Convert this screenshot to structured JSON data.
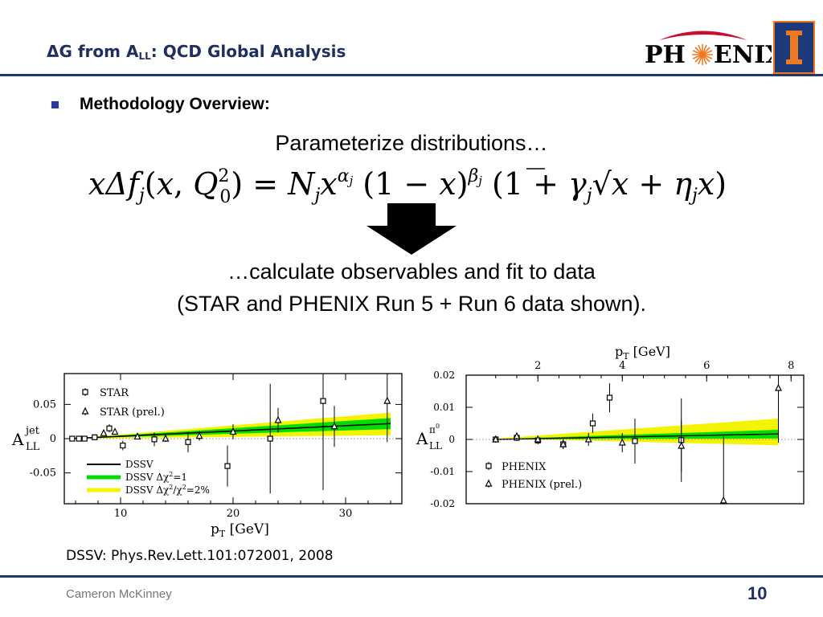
{
  "header": {
    "title_prefix": "ΔG from A",
    "title_sub": "LL",
    "title_suffix": ": QCD Global Analysis",
    "logo_text_left": "PH",
    "logo_text_right": "ENIX",
    "shield_letter": "I",
    "colors": {
      "title": "#1f2f5f",
      "rule": "#1f3a6a",
      "logo_orange": "#f07820",
      "logo_red": "#c8102e"
    }
  },
  "bullet": {
    "marker_color": "#2a3a9a",
    "text": "Methodology Overview:"
  },
  "body": {
    "line1": "Parameterize distributions…",
    "equation": "xΔf_j(x,Q_0^2) = N_j x^{α_j} (1−x)^{β_j} (1+γ_j√x + η_j x)",
    "line2": "…calculate observables and fit to data",
    "line3": "(STAR and PHENIX Run 5 + Run 6 data shown)."
  },
  "reference": "DSSV: Phys.Rev.Lett.101:072001, 2008",
  "footer": {
    "presenter": "Cameron McKinney",
    "page": "10"
  },
  "chart_data": [
    {
      "type": "scatter",
      "name": "star",
      "ylabel_main": "A",
      "ylabel_sup": "jet",
      "ylabel_sub": "LL",
      "xlabel": "p",
      "xlabel_sub": "T",
      "xlabel_unit": " [GeV]",
      "xlim": [
        5,
        35
      ],
      "ylim": [
        -0.095,
        0.095
      ],
      "xticks": [
        10,
        20,
        30
      ],
      "yticks": [
        0.05,
        0,
        -0.05
      ],
      "ytick_labels": [
        "0.05",
        "0",
        "-0.05"
      ],
      "series": [
        {
          "name": "STAR",
          "marker": "square",
          "points": [
            [
              5.7,
              0.0
            ],
            [
              6.3,
              0.0
            ],
            [
              6.8,
              0.0
            ],
            [
              7.7,
              0.002
            ],
            [
              9.0,
              0.015
            ],
            [
              10.2,
              -0.01
            ],
            [
              13.0,
              -0.001
            ],
            [
              16.0,
              -0.005
            ],
            [
              19.5,
              -0.04
            ],
            [
              23.3,
              0.0
            ],
            [
              28.0,
              0.055
            ]
          ],
          "err": [
            0.003,
            0.003,
            0.003,
            0.004,
            0.006,
            0.007,
            0.01,
            0.015,
            0.03,
            0.08,
            0.13
          ]
        },
        {
          "name": "STAR (prel.)",
          "marker": "triangle",
          "points": [
            [
              8.5,
              0.008
            ],
            [
              9.5,
              0.01
            ],
            [
              11.5,
              0.003
            ],
            [
              14.0,
              0.0
            ],
            [
              17.0,
              0.004
            ],
            [
              20.0,
              0.01
            ],
            [
              24.0,
              0.027
            ],
            [
              29.0,
              0.018
            ],
            [
              33.7,
              0.055
            ]
          ],
          "err": [
            0.003,
            0.003,
            0.004,
            0.005,
            0.007,
            0.011,
            0.018,
            0.03,
            0.06
          ]
        }
      ],
      "legend": [
        {
          "label": "DSSV",
          "color": "#000000",
          "width": 2
        },
        {
          "label": "DSSV Δχ",
          "sup": "2",
          "suffix": "=1",
          "color": "#00dd00",
          "width": 5
        },
        {
          "label": "DSSV Δχ",
          "sup": "2",
          "suffix": "/χ",
          "sup2": "2",
          "suffix2": "=2%",
          "color": "#f4f400",
          "width": 5
        }
      ]
    },
    {
      "type": "scatter",
      "name": "phenix",
      "ylabel_main": "A",
      "ylabel_sup": "π",
      "ylabel_sup2": "0",
      "ylabel_sub": "LL",
      "xlabel_top": "p",
      "xlabel_top_sub": "T",
      "xlabel_top_unit": " [GeV]",
      "xlim": [
        0.3,
        8.3
      ],
      "ylim": [
        -0.02,
        0.02
      ],
      "xticks": [
        2,
        4,
        6,
        8
      ],
      "yticks": [
        0.02,
        0.01,
        0,
        -0.01,
        -0.02
      ],
      "ytick_labels": [
        "0.02",
        "0.01",
        "0",
        "-0.01",
        "-0.02"
      ],
      "series": [
        {
          "name": "PHENIX",
          "marker": "square",
          "points": [
            [
              1.0,
              0.0
            ],
            [
              1.5,
              0.0005
            ],
            [
              2.0,
              -0.0003
            ],
            [
              2.6,
              -0.0015
            ],
            [
              3.3,
              0.005
            ],
            [
              3.7,
              0.013
            ],
            [
              4.3,
              -0.0005
            ],
            [
              5.4,
              -0.0002
            ]
          ],
          "err": [
            0.001,
            0.001,
            0.0012,
            0.0015,
            0.003,
            0.0045,
            0.007,
            0.013
          ]
        },
        {
          "name": "PHENIX (prel.)",
          "marker": "triangle",
          "points": [
            [
              1.0,
              0.0
            ],
            [
              1.5,
              0.001
            ],
            [
              2.0,
              0.0
            ],
            [
              2.6,
              -0.0015
            ],
            [
              3.2,
              0.0
            ],
            [
              4.0,
              -0.001
            ],
            [
              5.4,
              -0.002
            ],
            [
              6.4,
              -0.019
            ],
            [
              7.7,
              0.016
            ]
          ],
          "err": [
            0.001,
            0.001,
            0.001,
            0.0015,
            0.002,
            0.003,
            0.008,
            0.02,
            0.017
          ]
        }
      ]
    }
  ]
}
